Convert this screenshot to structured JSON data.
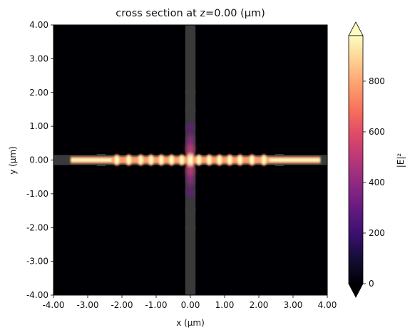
{
  "chart_data": {
    "type": "heatmap",
    "title": "cross section at z=0.00 (μm)",
    "xlabel": "x (μm)",
    "ylabel": "y (μm)",
    "xlim": [
      -4.0,
      4.0
    ],
    "ylim": [
      -4.0,
      4.0
    ],
    "x_ticks": [
      "-4.00",
      "-3.00",
      "-2.00",
      "-1.00",
      "0.00",
      "1.00",
      "2.00",
      "3.00",
      "4.00"
    ],
    "y_ticks": [
      "-4.00",
      "-3.00",
      "-2.00",
      "-1.00",
      "0.00",
      "1.00",
      "2.00",
      "3.00",
      "4.00"
    ],
    "x_tick_values": [
      -4,
      -3,
      -2,
      -1,
      0,
      1,
      2,
      3,
      4
    ],
    "y_tick_values": [
      -4,
      -3,
      -2,
      -1,
      0,
      1,
      2,
      3,
      4
    ],
    "colorbar": {
      "label": "|E|²",
      "colormap": "magma",
      "range": [
        0,
        980
      ],
      "extend": "both",
      "ticks": [
        "0",
        "200",
        "400",
        "600",
        "800"
      ],
      "tick_values": [
        0,
        200,
        400,
        600,
        800
      ]
    },
    "field": {
      "quantity": "|E|²",
      "waveguide_horizontal": {
        "y_center": 0.0,
        "width": 0.3,
        "x_range": [
          -4.0,
          4.0
        ]
      },
      "waveguide_vertical": {
        "x_center": 0.0,
        "width": 0.3,
        "y_range": [
          -4.0,
          4.0
        ]
      },
      "field_x_range": [
        -3.5,
        3.8
      ],
      "peak_intensity": 980
    }
  },
  "colors": {
    "background": "#ffffff",
    "plot_background": "#000004",
    "waveguide_overlay": "#3a3a3a"
  }
}
